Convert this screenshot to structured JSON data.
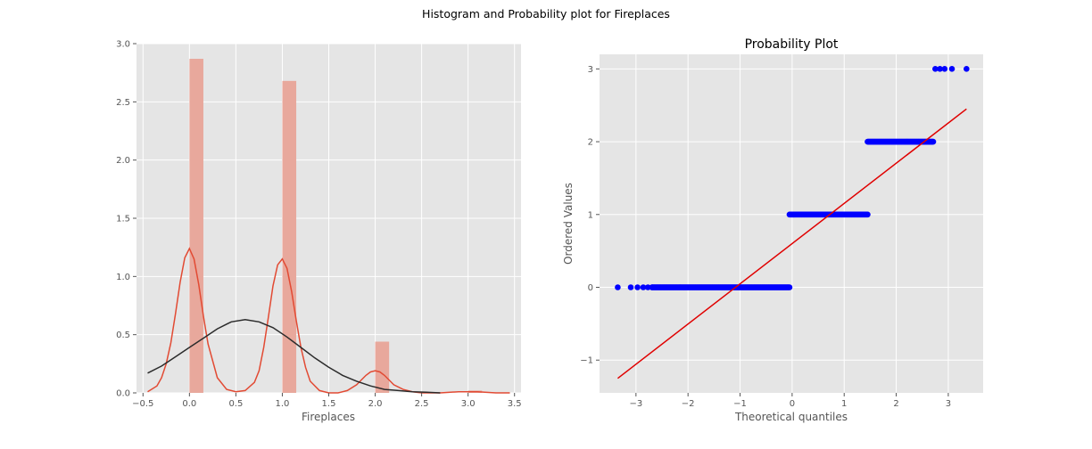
{
  "figure_title": "Histogram and Probability plot for Fireplaces",
  "colors": {
    "panel_bg": "#e5e5e5",
    "grid": "#ffffff",
    "hist_bar": "#e8a89c",
    "kde": "#e24a33",
    "normal_fit": "#2b2b2b",
    "qq_points": "#0000ff",
    "qq_line": "#e00000",
    "tick_text": "#555555",
    "label_text": "#555555",
    "title_text": "#000000"
  },
  "chart_data": [
    {
      "type": "bar",
      "subtype": "histogram_with_density",
      "title": "",
      "xlabel": "Fireplaces",
      "ylabel": "",
      "xlim": [
        -0.57,
        3.57
      ],
      "ylim": [
        0,
        3.0
      ],
      "xticks": [
        -0.5,
        0.0,
        0.5,
        1.0,
        1.5,
        2.0,
        2.5,
        3.0,
        3.5
      ],
      "xtick_labels": [
        "−0.5",
        "0.0",
        "0.5",
        "1.0",
        "1.5",
        "2.0",
        "2.5",
        "3.0",
        "3.5"
      ],
      "yticks": [
        0.0,
        0.5,
        1.0,
        1.5,
        2.0,
        2.5,
        3.0
      ],
      "ytick_labels": [
        "0.0",
        "0.5",
        "1.0",
        "1.5",
        "2.0",
        "2.5",
        "3.0"
      ],
      "grid": true,
      "bins": [
        {
          "x0": 0.0,
          "x1": 0.15,
          "value": 2.87
        },
        {
          "x0": 1.0,
          "x1": 1.15,
          "value": 2.68
        },
        {
          "x0": 2.0,
          "x1": 2.15,
          "value": 0.44
        },
        {
          "x0": 3.0,
          "x1": 3.15,
          "value": 0.02
        }
      ],
      "series": [
        {
          "kind": "kde",
          "x": [
            -0.45,
            -0.35,
            -0.3,
            -0.25,
            -0.2,
            -0.15,
            -0.1,
            -0.05,
            0.0,
            0.05,
            0.1,
            0.15,
            0.2,
            0.3,
            0.4,
            0.5,
            0.6,
            0.7,
            0.75,
            0.8,
            0.85,
            0.9,
            0.95,
            1.0,
            1.05,
            1.1,
            1.15,
            1.2,
            1.25,
            1.3,
            1.4,
            1.5,
            1.6,
            1.7,
            1.8,
            1.85,
            1.9,
            1.95,
            2.0,
            2.05,
            2.1,
            2.15,
            2.2,
            2.3,
            2.4,
            2.5,
            2.7,
            2.9,
            3.0,
            3.1,
            3.3,
            3.45
          ],
          "y": [
            0.01,
            0.06,
            0.13,
            0.25,
            0.43,
            0.68,
            0.95,
            1.16,
            1.24,
            1.15,
            0.93,
            0.66,
            0.42,
            0.13,
            0.03,
            0.01,
            0.02,
            0.09,
            0.19,
            0.39,
            0.65,
            0.92,
            1.1,
            1.15,
            1.07,
            0.87,
            0.62,
            0.39,
            0.22,
            0.1,
            0.02,
            0.0,
            0.0,
            0.02,
            0.07,
            0.11,
            0.15,
            0.18,
            0.19,
            0.18,
            0.15,
            0.11,
            0.07,
            0.03,
            0.01,
            0.0,
            0.0,
            0.01,
            0.01,
            0.01,
            0.0,
            0.0
          ]
        },
        {
          "kind": "normal_fit",
          "x": [
            -0.45,
            -0.3,
            -0.15,
            0.0,
            0.15,
            0.3,
            0.45,
            0.6,
            0.75,
            0.9,
            1.05,
            1.2,
            1.35,
            1.5,
            1.65,
            1.8,
            1.95,
            2.1,
            2.25,
            2.4,
            2.55,
            2.7
          ],
          "y": [
            0.17,
            0.23,
            0.31,
            0.39,
            0.47,
            0.55,
            0.61,
            0.63,
            0.61,
            0.56,
            0.48,
            0.39,
            0.3,
            0.22,
            0.15,
            0.1,
            0.06,
            0.03,
            0.02,
            0.01,
            0.005,
            0.0
          ]
        }
      ]
    },
    {
      "type": "scatter",
      "subtype": "probability_plot",
      "title": "Probability Plot",
      "xlabel": "Theoretical quantiles",
      "ylabel": "Ordered Values",
      "xlim": [
        -3.7,
        3.67
      ],
      "ylim": [
        -1.45,
        3.2
      ],
      "xticks": [
        -3,
        -2,
        -1,
        0,
        1,
        2,
        3
      ],
      "xtick_labels": [
        "−3",
        "−2",
        "−1",
        "0",
        "1",
        "2",
        "3"
      ],
      "yticks": [
        -1,
        0,
        1,
        2,
        3
      ],
      "ytick_labels": [
        "−1",
        "0",
        "1",
        "2",
        "3"
      ],
      "grid": true,
      "points": [
        {
          "x_from": -3.35,
          "x_to": -0.05,
          "y": 0,
          "isolated_x": [
            -3.35,
            -3.1,
            -2.97,
            -2.86,
            -2.77,
            -2.69
          ]
        },
        {
          "x_from": -0.05,
          "x_to": 1.45,
          "y": 1,
          "isolated_x": []
        },
        {
          "x_from": 1.45,
          "x_to": 2.72,
          "y": 2,
          "isolated_x": []
        },
        {
          "x_from": 2.75,
          "x_to": 3.35,
          "y": 3,
          "isolated_x": [
            2.75,
            2.84,
            2.93,
            3.07,
            3.35
          ]
        }
      ],
      "fit_line": {
        "x": [
          -3.35,
          3.35
        ],
        "y": [
          -1.25,
          2.45
        ]
      }
    }
  ]
}
